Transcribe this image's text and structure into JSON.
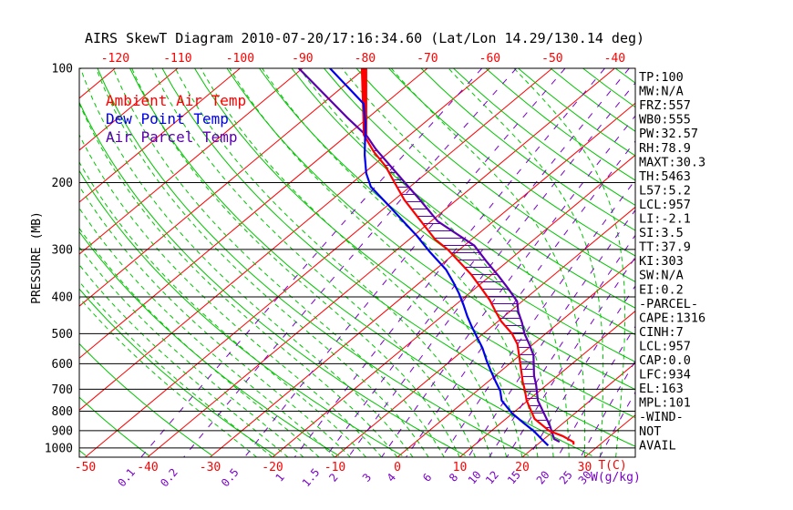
{
  "chart_data": {
    "type": "skewt",
    "title": "AIRS SkewT Diagram 2010-07-20/17:16:34.60 (Lat/Lon 14.29/130.14 deg)",
    "axes": {
      "pressure_label": "PRESSURE (MB)",
      "pressure_ticks": [
        100,
        200,
        300,
        400,
        500,
        600,
        700,
        800,
        900,
        1000
      ],
      "pressure_range_mb": [
        100,
        1057
      ],
      "temp_label": "T(C)",
      "temp_ticks_bottom_c": [
        -50,
        -40,
        -30,
        -20,
        -10,
        0,
        10,
        20,
        30
      ],
      "temp_ticks_top_c": [
        -120,
        -110,
        -100,
        -90,
        -80,
        -70,
        -60,
        -50,
        -40
      ],
      "mixing_label": "W(g/kg)",
      "mixing_ratio_lines_g_kg": [
        0.1,
        0.2,
        0.5,
        1,
        1.5,
        2,
        3,
        4,
        6,
        8,
        10,
        12,
        15,
        20,
        25,
        30
      ]
    },
    "grid": {
      "isotherm_step_c": 10,
      "isotherm_range_c": [
        -130,
        40
      ],
      "dry_adiabat_theta_k": {
        "start": 220,
        "end": 460,
        "step": 10
      },
      "moist_adiabat_surface_temp_c": {
        "start": -22.5,
        "end": 35,
        "step": 2.5
      },
      "grid_on": true
    },
    "series": [
      {
        "name": "Ambient Air Temp",
        "color": "#ff0000",
        "points": [
          [
            100,
            -80.5
          ],
          [
            150,
            -67.3
          ],
          [
            166,
            -62.5
          ],
          [
            181,
            -57.9
          ],
          [
            199,
            -53.5
          ],
          [
            222,
            -48.4
          ],
          [
            249,
            -42.4
          ],
          [
            282,
            -35.9
          ],
          [
            300,
            -31.9
          ],
          [
            322,
            -27.9
          ],
          [
            350,
            -23.2
          ],
          [
            380,
            -19.0
          ],
          [
            408,
            -15.4
          ],
          [
            436,
            -12.4
          ],
          [
            464,
            -9.5
          ],
          [
            500,
            -5.4
          ],
          [
            533,
            -2.5
          ],
          [
            600,
            1.7
          ],
          [
            670,
            5.6
          ],
          [
            700,
            7.3
          ],
          [
            750,
            9.8
          ],
          [
            838,
            14.6
          ],
          [
            902,
            19.3
          ],
          [
            930,
            22.4
          ],
          [
            965,
            25.3
          ],
          [
            980,
            25.8
          ]
        ]
      },
      {
        "name": "Dew Point Temp",
        "color": "#0000ee",
        "points": [
          [
            100,
            -85.6
          ],
          [
            124,
            -73.4
          ],
          [
            139,
            -69.5
          ],
          [
            151,
            -66.9
          ],
          [
            169,
            -63.4
          ],
          [
            189,
            -59.6
          ],
          [
            205,
            -56.3
          ],
          [
            231,
            -49.5
          ],
          [
            249,
            -45.3
          ],
          [
            277,
            -39.3
          ],
          [
            305,
            -34.2
          ],
          [
            339,
            -28.3
          ],
          [
            366,
            -24.7
          ],
          [
            392,
            -21.6
          ],
          [
            420,
            -18.7
          ],
          [
            450,
            -15.9
          ],
          [
            478,
            -13.3
          ],
          [
            510,
            -10.4
          ],
          [
            545,
            -7.4
          ],
          [
            590,
            -4.2
          ],
          [
            627,
            -1.6
          ],
          [
            670,
            1.3
          ],
          [
            707,
            3.7
          ],
          [
            750,
            5.8
          ],
          [
            810,
            9.9
          ],
          [
            860,
            13.7
          ],
          [
            902,
            16.8
          ],
          [
            952,
            19.9
          ],
          [
            985,
            21.9
          ]
        ]
      },
      {
        "name": "Air Parcel Temp",
        "color": "#5a00b0",
        "points": [
          [
            100,
            -90.6
          ],
          [
            135,
            -73.3
          ],
          [
            151,
            -66.6
          ],
          [
            163,
            -62.8
          ],
          [
            199,
            -51.9
          ],
          [
            222,
            -45.9
          ],
          [
            253,
            -38.9
          ],
          [
            293,
            -28.4
          ],
          [
            322,
            -23.5
          ],
          [
            352,
            -18.7
          ],
          [
            381,
            -14.6
          ],
          [
            411,
            -10.8
          ],
          [
            438,
            -8.6
          ],
          [
            468,
            -5.9
          ],
          [
            500,
            -3.4
          ],
          [
            533,
            -0.6
          ],
          [
            570,
            2.2
          ],
          [
            645,
            6.2
          ],
          [
            680,
            8.2
          ],
          [
            750,
            11.6
          ],
          [
            810,
            15.0
          ],
          [
            872,
            18.3
          ],
          [
            947,
            21.6
          ],
          [
            963,
            23.0
          ]
        ]
      }
    ],
    "tropopause_bar": {
      "temp_at_100mb": -80,
      "p_top_mb": 100,
      "p_bottom_mb": 150
    },
    "cape_hatch": {
      "between": [
        "Air Parcel Temp",
        "Ambient Air Temp"
      ],
      "p_top_mb": 163,
      "p_bottom_mb": 940
    }
  },
  "legend": {
    "items": [
      {
        "label": "Ambient Air Temp",
        "color": "#ff0000"
      },
      {
        "label": "Dew Point Temp",
        "color": "#0000ee"
      },
      {
        "label": "Air Parcel Temp",
        "color": "#5a00b0"
      }
    ]
  },
  "stats_panel": {
    "lines": [
      "TP:100",
      "MW:N/A",
      "FRZ:557",
      "WB0:555",
      "PW:32.57",
      "RH:78.9",
      "MAXT:30.3",
      "TH:5463",
      "L57:5.2",
      "LCL:957",
      "LI:-2.1",
      "SI:3.5",
      "TT:37.9",
      "KI:303",
      "SW:N/A",
      "EI:0.2",
      "-PARCEL-",
      "CAPE:1316",
      "CINH:7",
      "LCL:957",
      "CAP:0.0",
      "LFC:934",
      "EL:163",
      "MPL:101",
      "-WIND-",
      "NOT",
      "AVAIL"
    ]
  },
  "colors": {
    "isotherm": "#ff0000",
    "dry_adiabat": "#00c400",
    "moist_adiabat": "#00c400",
    "mixing_ratio": "#7a00c8",
    "pressure_line": "#000000",
    "text": "#000000",
    "background": "#ffffff"
  }
}
